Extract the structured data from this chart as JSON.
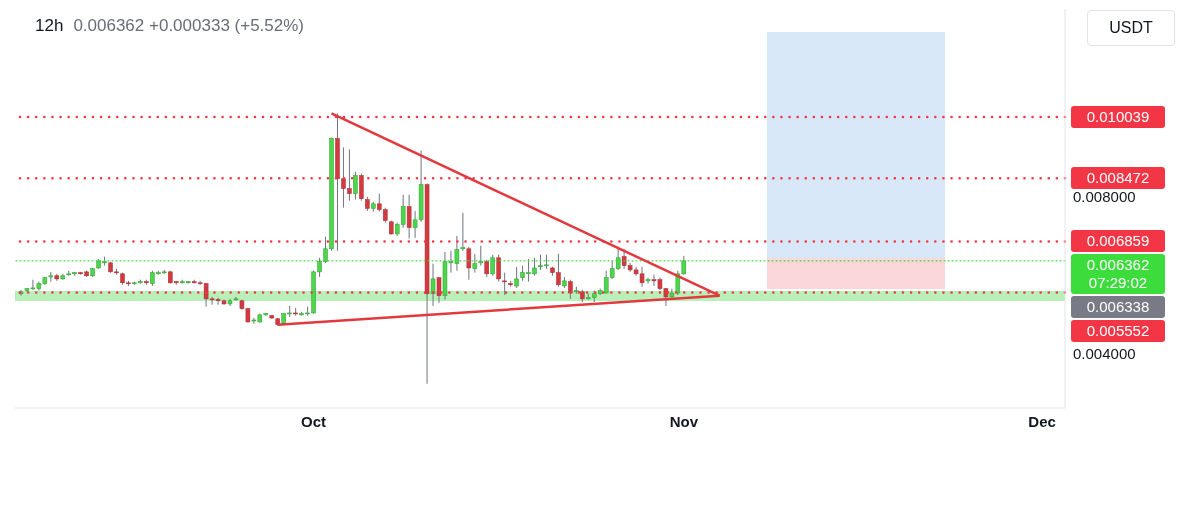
{
  "chart_data": {
    "type": "candlestick",
    "title": "12h",
    "subtitle": "0.006362 +0.000333 (+5.52%)",
    "ylabel": "USDT",
    "x": [
      "--09-06T12:00",
      "--09-07T00:00",
      "--09-07T12:00",
      "--09-08T00:00",
      "--09-08T12:00",
      "--09-09T00:00",
      "--09-09T12:00",
      "--09-10T00:00",
      "--09-10T12:00",
      "--09-11T00:00",
      "--09-11T12:00",
      "--09-12T00:00",
      "--09-12T12:00",
      "--09-13T00:00",
      "--09-13T12:00",
      "--09-14T00:00",
      "--09-14T12:00",
      "--09-15T00:00",
      "--09-15T12:00",
      "--09-16T00:00",
      "--09-16T12:00",
      "--09-17T00:00",
      "--09-17T12:00",
      "--09-18T00:00",
      "--09-18T12:00",
      "--09-19T00:00",
      "--09-19T12:00",
      "--09-20T00:00",
      "--09-20T12:00",
      "--09-21T00:00",
      "--09-21T12:00",
      "--09-22T00:00",
      "--09-22T12:00",
      "--09-23T00:00",
      "--09-23T12:00",
      "--09-24T00:00",
      "--09-24T12:00",
      "--09-25T00:00",
      "--09-25T12:00",
      "--09-26T00:00",
      "--09-26T12:00",
      "--09-27T00:00",
      "--09-27T12:00",
      "--09-28T00:00",
      "--09-28T12:00",
      "--09-29T00:00",
      "--09-29T12:00",
      "--09-30T00:00",
      "--09-30T12:00",
      "--10-01T00:00",
      "--10-01T12:00",
      "--10-02T00:00",
      "--10-02T12:00",
      "--10-03T00:00",
      "--10-03T12:00",
      "--10-04T00:00",
      "--10-04T12:00",
      "--10-05T00:00",
      "--10-05T12:00",
      "--10-06T00:00",
      "--10-06T12:00",
      "--10-07T00:00",
      "--10-07T12:00",
      "--10-08T00:00",
      "--10-08T12:00",
      "--10-09T00:00",
      "--10-09T12:00",
      "--10-10T00:00",
      "--10-10T12:00",
      "--10-11T00:00",
      "--10-11T12:00",
      "--10-12T00:00",
      "--10-12T12:00",
      "--10-13T00:00",
      "--10-13T12:00",
      "--10-14T00:00",
      "--10-14T12:00",
      "--10-15T00:00",
      "--10-15T12:00",
      "--10-16T00:00",
      "--10-16T12:00",
      "--10-17T00:00",
      "--10-17T12:00",
      "--10-18T00:00",
      "--10-18T12:00",
      "--10-19T00:00",
      "--10-19T12:00",
      "--10-20T00:00",
      "--10-20T12:00",
      "--10-21T00:00",
      "--10-21T12:00",
      "--10-22T00:00",
      "--10-22T12:00",
      "--10-23T00:00",
      "--10-23T12:00",
      "--10-24T00:00",
      "--10-24T12:00",
      "--10-25T00:00",
      "--10-25T12:00",
      "--10-26T00:00",
      "--10-26T12:00",
      "--10-27T00:00",
      "--10-27T12:00",
      "--10-28T00:00",
      "--10-28T12:00",
      "--10-29T00:00",
      "--10-29T12:00",
      "--10-30T00:00",
      "--10-30T12:00",
      "--10-31T00:00",
      "--10-31T12:00",
      "--11-01T00:00"
    ],
    "ohlc": [
      [
        0.00552,
        0.00562,
        0.00547,
        0.00557
      ],
      [
        0.0056,
        0.00567,
        0.00557,
        0.00565
      ],
      [
        0.00565,
        0.00588,
        0.00562,
        0.00567
      ],
      [
        0.00565,
        0.00583,
        0.0056,
        0.00578
      ],
      [
        0.00578,
        0.00595,
        0.00575,
        0.00593
      ],
      [
        0.00595,
        0.00608,
        0.00583,
        0.00598
      ],
      [
        0.00598,
        0.00603,
        0.00585,
        0.0059
      ],
      [
        0.0059,
        0.00603,
        0.00588,
        0.00598
      ],
      [
        0.00601,
        0.00611,
        0.00598,
        0.00603
      ],
      [
        0.00603,
        0.00608,
        0.00598,
        0.00606
      ],
      [
        0.00606,
        0.00608,
        0.00601,
        0.00603
      ],
      [
        0.00608,
        0.00611,
        0.00595,
        0.00598
      ],
      [
        0.00598,
        0.00618,
        0.00595,
        0.00616
      ],
      [
        0.00618,
        0.00641,
        0.00616,
        0.00636
      ],
      [
        0.00631,
        0.00647,
        0.00624,
        0.00634
      ],
      [
        0.00631,
        0.00634,
        0.00606,
        0.00608
      ],
      [
        0.00608,
        0.00616,
        0.00601,
        0.00606
      ],
      [
        0.00603,
        0.00606,
        0.00575,
        0.0058
      ],
      [
        0.0058,
        0.00585,
        0.00572,
        0.00578
      ],
      [
        0.00578,
        0.00583,
        0.00575,
        0.0058
      ],
      [
        0.0058,
        0.00588,
        0.00578,
        0.00583
      ],
      [
        0.00583,
        0.00588,
        0.00575,
        0.0058
      ],
      [
        0.00578,
        0.00611,
        0.00572,
        0.00606
      ],
      [
        0.00603,
        0.00611,
        0.00601,
        0.00606
      ],
      [
        0.00606,
        0.00613,
        0.00603,
        0.00608
      ],
      [
        0.00608,
        0.00611,
        0.00578,
        0.0058
      ],
      [
        0.00583,
        0.00585,
        0.00575,
        0.0058
      ],
      [
        0.0058,
        0.00588,
        0.00578,
        0.00583
      ],
      [
        0.0058,
        0.00585,
        0.00578,
        0.00583
      ],
      [
        0.00583,
        0.00588,
        0.00578,
        0.0058
      ],
      [
        0.0058,
        0.00585,
        0.00575,
        0.00578
      ],
      [
        0.00578,
        0.0058,
        0.00519,
        0.00539
      ],
      [
        0.00539,
        0.00544,
        0.00524,
        0.00537
      ],
      [
        0.00537,
        0.00542,
        0.00524,
        0.00534
      ],
      [
        0.00534,
        0.00537,
        0.00524,
        0.00526
      ],
      [
        0.00526,
        0.00539,
        0.00521,
        0.00534
      ],
      [
        0.00537,
        0.00544,
        0.00534,
        0.00539
      ],
      [
        0.00534,
        0.00537,
        0.00511,
        0.00514
      ],
      [
        0.00514,
        0.00516,
        0.00478,
        0.0048
      ],
      [
        0.00483,
        0.0049,
        0.00475,
        0.00485
      ],
      [
        0.0048,
        0.00501,
        0.00478,
        0.00498
      ],
      [
        0.00498,
        0.00503,
        0.00496,
        0.00501
      ],
      [
        0.00496,
        0.00498,
        0.00488,
        0.0049
      ],
      [
        0.00488,
        0.0049,
        0.0047,
        0.00473
      ],
      [
        0.00475,
        0.00503,
        0.00473,
        0.00501
      ],
      [
        0.00501,
        0.00521,
        0.00493,
        0.00503
      ],
      [
        0.00503,
        0.00516,
        0.00496,
        0.00501
      ],
      [
        0.00498,
        0.00506,
        0.00496,
        0.00501
      ],
      [
        0.00501,
        0.00519,
        0.00496,
        0.00503
      ],
      [
        0.00503,
        0.00611,
        0.00501,
        0.00608
      ],
      [
        0.00608,
        0.00644,
        0.00595,
        0.00634
      ],
      [
        0.00634,
        0.00698,
        0.00631,
        0.00667
      ],
      [
        0.00667,
        0.00951,
        0.00662,
        0.00949
      ],
      [
        0.00949,
        0.01013,
        0.00662,
        0.00846
      ],
      [
        0.00846,
        0.00926,
        0.00772,
        0.00821
      ],
      [
        0.00821,
        0.00921,
        0.0079,
        0.00808
      ],
      [
        0.00808,
        0.00864,
        0.00793,
        0.00854
      ],
      [
        0.00854,
        0.00859,
        0.0079,
        0.00795
      ],
      [
        0.00793,
        0.008,
        0.00764,
        0.0077
      ],
      [
        0.0077,
        0.00787,
        0.00762,
        0.00782
      ],
      [
        0.00782,
        0.00808,
        0.00762,
        0.00767
      ],
      [
        0.00767,
        0.00772,
        0.00734,
        0.00739
      ],
      [
        0.00736,
        0.00739,
        0.00703,
        0.00705
      ],
      [
        0.00705,
        0.00734,
        0.007,
        0.00729
      ],
      [
        0.00729,
        0.00805,
        0.00721,
        0.00775
      ],
      [
        0.00775,
        0.00805,
        0.00693,
        0.00721
      ],
      [
        0.00721,
        0.00764,
        0.00695,
        0.00741
      ],
      [
        0.00741,
        0.00918,
        0.00736,
        0.00831
      ],
      [
        0.00831,
        0.00834,
        0.00322,
        0.00552
      ],
      [
        0.00552,
        0.00629,
        0.00521,
        0.0059
      ],
      [
        0.00593,
        0.00595,
        0.00529,
        0.00547
      ],
      [
        0.00547,
        0.00659,
        0.00537,
        0.00634
      ],
      [
        0.00631,
        0.00662,
        0.00606,
        0.00634
      ],
      [
        0.00629,
        0.007,
        0.00611,
        0.00665
      ],
      [
        0.00667,
        0.00759,
        0.00662,
        0.0067
      ],
      [
        0.00667,
        0.00672,
        0.00588,
        0.00618
      ],
      [
        0.00616,
        0.00654,
        0.00606,
        0.00629
      ],
      [
        0.00631,
        0.00675,
        0.00624,
        0.00634
      ],
      [
        0.00634,
        0.00639,
        0.00595,
        0.00603
      ],
      [
        0.00603,
        0.00652,
        0.00598,
        0.00644
      ],
      [
        0.00644,
        0.00652,
        0.00583,
        0.0059
      ],
      [
        0.00585,
        0.00606,
        0.00549,
        0.00583
      ],
      [
        0.00578,
        0.00585,
        0.0057,
        0.00575
      ],
      [
        0.00572,
        0.00621,
        0.00567,
        0.0059
      ],
      [
        0.00593,
        0.00624,
        0.00585,
        0.00606
      ],
      [
        0.00603,
        0.00641,
        0.00583,
        0.00606
      ],
      [
        0.00603,
        0.00644,
        0.00598,
        0.00618
      ],
      [
        0.00621,
        0.00652,
        0.00613,
        0.00624
      ],
      [
        0.00624,
        0.00652,
        0.00616,
        0.00626
      ],
      [
        0.00618,
        0.00621,
        0.00598,
        0.00606
      ],
      [
        0.00606,
        0.00654,
        0.0057,
        0.00575
      ],
      [
        0.00572,
        0.00595,
        0.00567,
        0.00585
      ],
      [
        0.00583,
        0.00588,
        0.00539,
        0.00554
      ],
      [
        0.00557,
        0.0057,
        0.00552,
        0.0056
      ],
      [
        0.00557,
        0.00562,
        0.00531,
        0.00539
      ],
      [
        0.00539,
        0.00552,
        0.00537,
        0.00542
      ],
      [
        0.00542,
        0.0056,
        0.00531,
        0.00552
      ],
      [
        0.00552,
        0.00565,
        0.00549,
        0.0056
      ],
      [
        0.00554,
        0.00611,
        0.00552,
        0.00593
      ],
      [
        0.00593,
        0.00636,
        0.0059,
        0.00616
      ],
      [
        0.00616,
        0.00667,
        0.00613,
        0.00644
      ],
      [
        0.00647,
        0.00667,
        0.00616,
        0.00624
      ],
      [
        0.00624,
        0.00631,
        0.00608,
        0.00613
      ],
      [
        0.00613,
        0.00621,
        0.00598,
        0.00603
      ],
      [
        0.00603,
        0.00621,
        0.0057,
        0.0058
      ],
      [
        0.00585,
        0.00593,
        0.00578,
        0.00588
      ],
      [
        0.00588,
        0.00601,
        0.00572,
        0.00585
      ],
      [
        0.00588,
        0.00593,
        0.00562,
        0.00565
      ],
      [
        0.00565,
        0.00567,
        0.00521,
        0.00544
      ],
      [
        0.00544,
        0.00565,
        0.00542,
        0.00554
      ],
      [
        0.00554,
        0.00611,
        0.00549,
        0.006029
      ],
      [
        0.006029,
        0.00649,
        0.00601,
        0.006362
      ]
    ],
    "series": [
      {
        "type": "line",
        "color": "#e2393f",
        "x": [
          "--10-02T12:00",
          "--11-04T00:00"
        ],
        "values": [
          0.01013,
          0.00547
        ]
      },
      {
        "type": "line",
        "color": "#e2393f",
        "x": [
          "--09-28T00:00",
          "--11-04T00:00"
        ],
        "values": [
          0.00473,
          0.00547
        ]
      }
    ],
    "xlim": [
      "--09-06T00:00",
      "--12-02T22:00"
    ],
    "xticks": [
      {
        "value": "--10-01",
        "label": "Oct"
      },
      {
        "value": "--11-01",
        "label": "Nov"
      },
      {
        "value": "--12-01",
        "label": "Dec"
      }
    ],
    "ylim": [
      0.0026,
      0.0128
    ],
    "yticks": [
      {
        "value": 0.004,
        "label": "0.004000"
      },
      {
        "value": 0.008,
        "label": "0.008000"
      }
    ],
    "ref_lines": [
      {
        "axis": "y",
        "value": 0.010039,
        "label": "0.010039",
        "color": "#f23645",
        "line_style": "dotted"
      },
      {
        "axis": "y",
        "value": 0.008472,
        "label": "0.008472",
        "color": "#f23645",
        "line_style": "dotted"
      },
      {
        "axis": "y",
        "value": 0.006859,
        "label": "0.006859",
        "color": "#f23645",
        "line_style": "dotted"
      },
      {
        "axis": "y",
        "value": 0.006362,
        "label": "0.006362",
        "color": "#3ddc3d",
        "line_style": "dotted"
      },
      {
        "axis": "y",
        "value": 0.005552,
        "label": "0.005552",
        "color": "#f23645",
        "line_style": "dotted"
      }
    ],
    "bands": [
      {
        "axis": "y",
        "from": 0.00533,
        "to": 0.00559,
        "color": "#8be68b"
      }
    ],
    "annotations": [
      "07:29:02",
      "0.006338"
    ]
  }
}
